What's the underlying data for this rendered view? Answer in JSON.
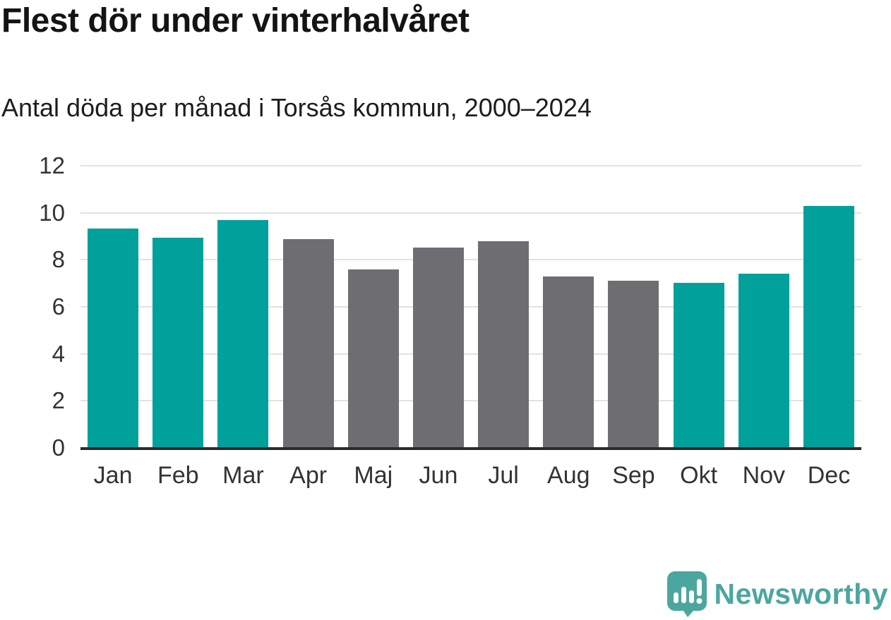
{
  "chart_data": {
    "type": "bar",
    "title": "Flest dör under vinterhalvåret",
    "subtitle": "Antal döda per månad i Torsås kommun, 2000–2024",
    "categories": [
      "Jan",
      "Feb",
      "Mar",
      "Apr",
      "Maj",
      "Jun",
      "Jul",
      "Aug",
      "Sep",
      "Okt",
      "Nov",
      "Dec"
    ],
    "values": [
      9.32,
      8.93,
      9.68,
      8.88,
      7.6,
      8.53,
      8.79,
      7.28,
      7.1,
      7.03,
      7.4,
      10.29
    ],
    "bar_color_keys": [
      "highlight",
      "highlight",
      "highlight",
      "muted",
      "muted",
      "muted",
      "muted",
      "muted",
      "muted",
      "highlight",
      "highlight",
      "highlight"
    ],
    "palette": {
      "highlight": "#00a09b",
      "muted": "#6e6d72"
    },
    "xlabel": "",
    "ylabel": "",
    "ylim": [
      0,
      12
    ],
    "yticks": [
      0,
      2,
      4,
      6,
      8,
      10,
      12
    ],
    "grid": true,
    "legend": "none",
    "grid_color": "#e2e2e2",
    "axis_line_color": "#2b2b2b",
    "tick_label_color": "#333333"
  },
  "branding": {
    "logo_text": "Newsworthy",
    "logo_color": "#4ca6a0"
  }
}
